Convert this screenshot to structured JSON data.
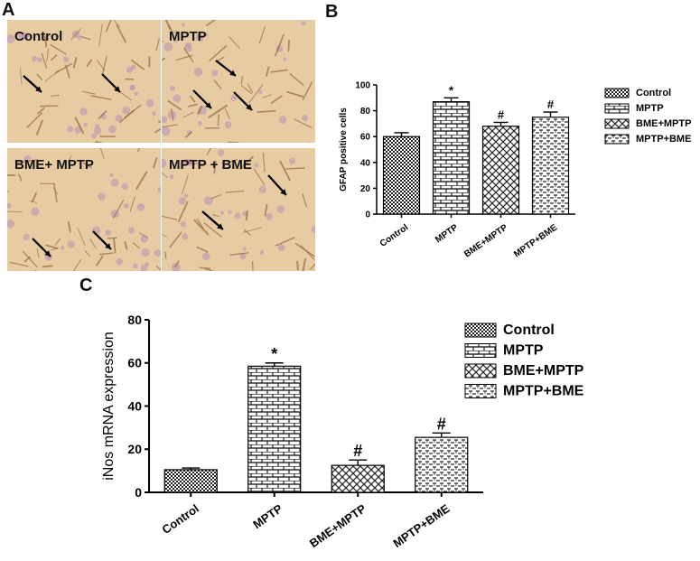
{
  "panels": {
    "a": "A",
    "b": "B",
    "c": "C"
  },
  "micrographs": [
    {
      "label": "Control"
    },
    {
      "label": "MPTP"
    },
    {
      "label": "BME+ MPTP"
    },
    {
      "label": "MPTP + BME"
    }
  ],
  "colors": {
    "bar_fill": "#ffffff",
    "bar_stroke": "#111111",
    "tissue": "#e6cba3"
  },
  "chart_data": [
    {
      "type": "bar",
      "title": "",
      "categories": [
        "Control",
        "MPTP",
        "BME+MPTP",
        "MPTP+BME"
      ],
      "values": [
        60,
        87,
        68,
        75
      ],
      "errors": [
        3,
        3,
        3,
        4
      ],
      "annotations": [
        "",
        "*",
        "#",
        "#"
      ],
      "ylabel": "GFAP positive cells",
      "xlabel": "",
      "ylim": [
        0,
        100
      ],
      "yticks": [
        0,
        20,
        40,
        60,
        80,
        100
      ],
      "legend": [
        "Control",
        "MPTP",
        "BME+MPTP",
        "MPTP+BME"
      ],
      "legend_position": "right",
      "patterns": [
        "dots",
        "bricks",
        "crosshatch",
        "dash"
      ]
    },
    {
      "type": "bar",
      "title": "",
      "categories": [
        "Control",
        "MPTP",
        "BME+MPTP",
        "MPTP+BME"
      ],
      "values": [
        10.5,
        58.5,
        12.5,
        25.5
      ],
      "errors": [
        0.8,
        1.5,
        2.5,
        2
      ],
      "annotations": [
        "",
        "*",
        "#",
        "#"
      ],
      "ylabel": "iNos mRNA expression",
      "xlabel": "",
      "ylim": [
        0,
        80
      ],
      "yticks": [
        0,
        20,
        40,
        60,
        80
      ],
      "legend": [
        "Control",
        "MPTP",
        "BME+MPTP",
        "MPTP+BME"
      ],
      "legend_position": "right",
      "patterns": [
        "dots",
        "bricks",
        "crosshatch",
        "dash"
      ]
    }
  ]
}
